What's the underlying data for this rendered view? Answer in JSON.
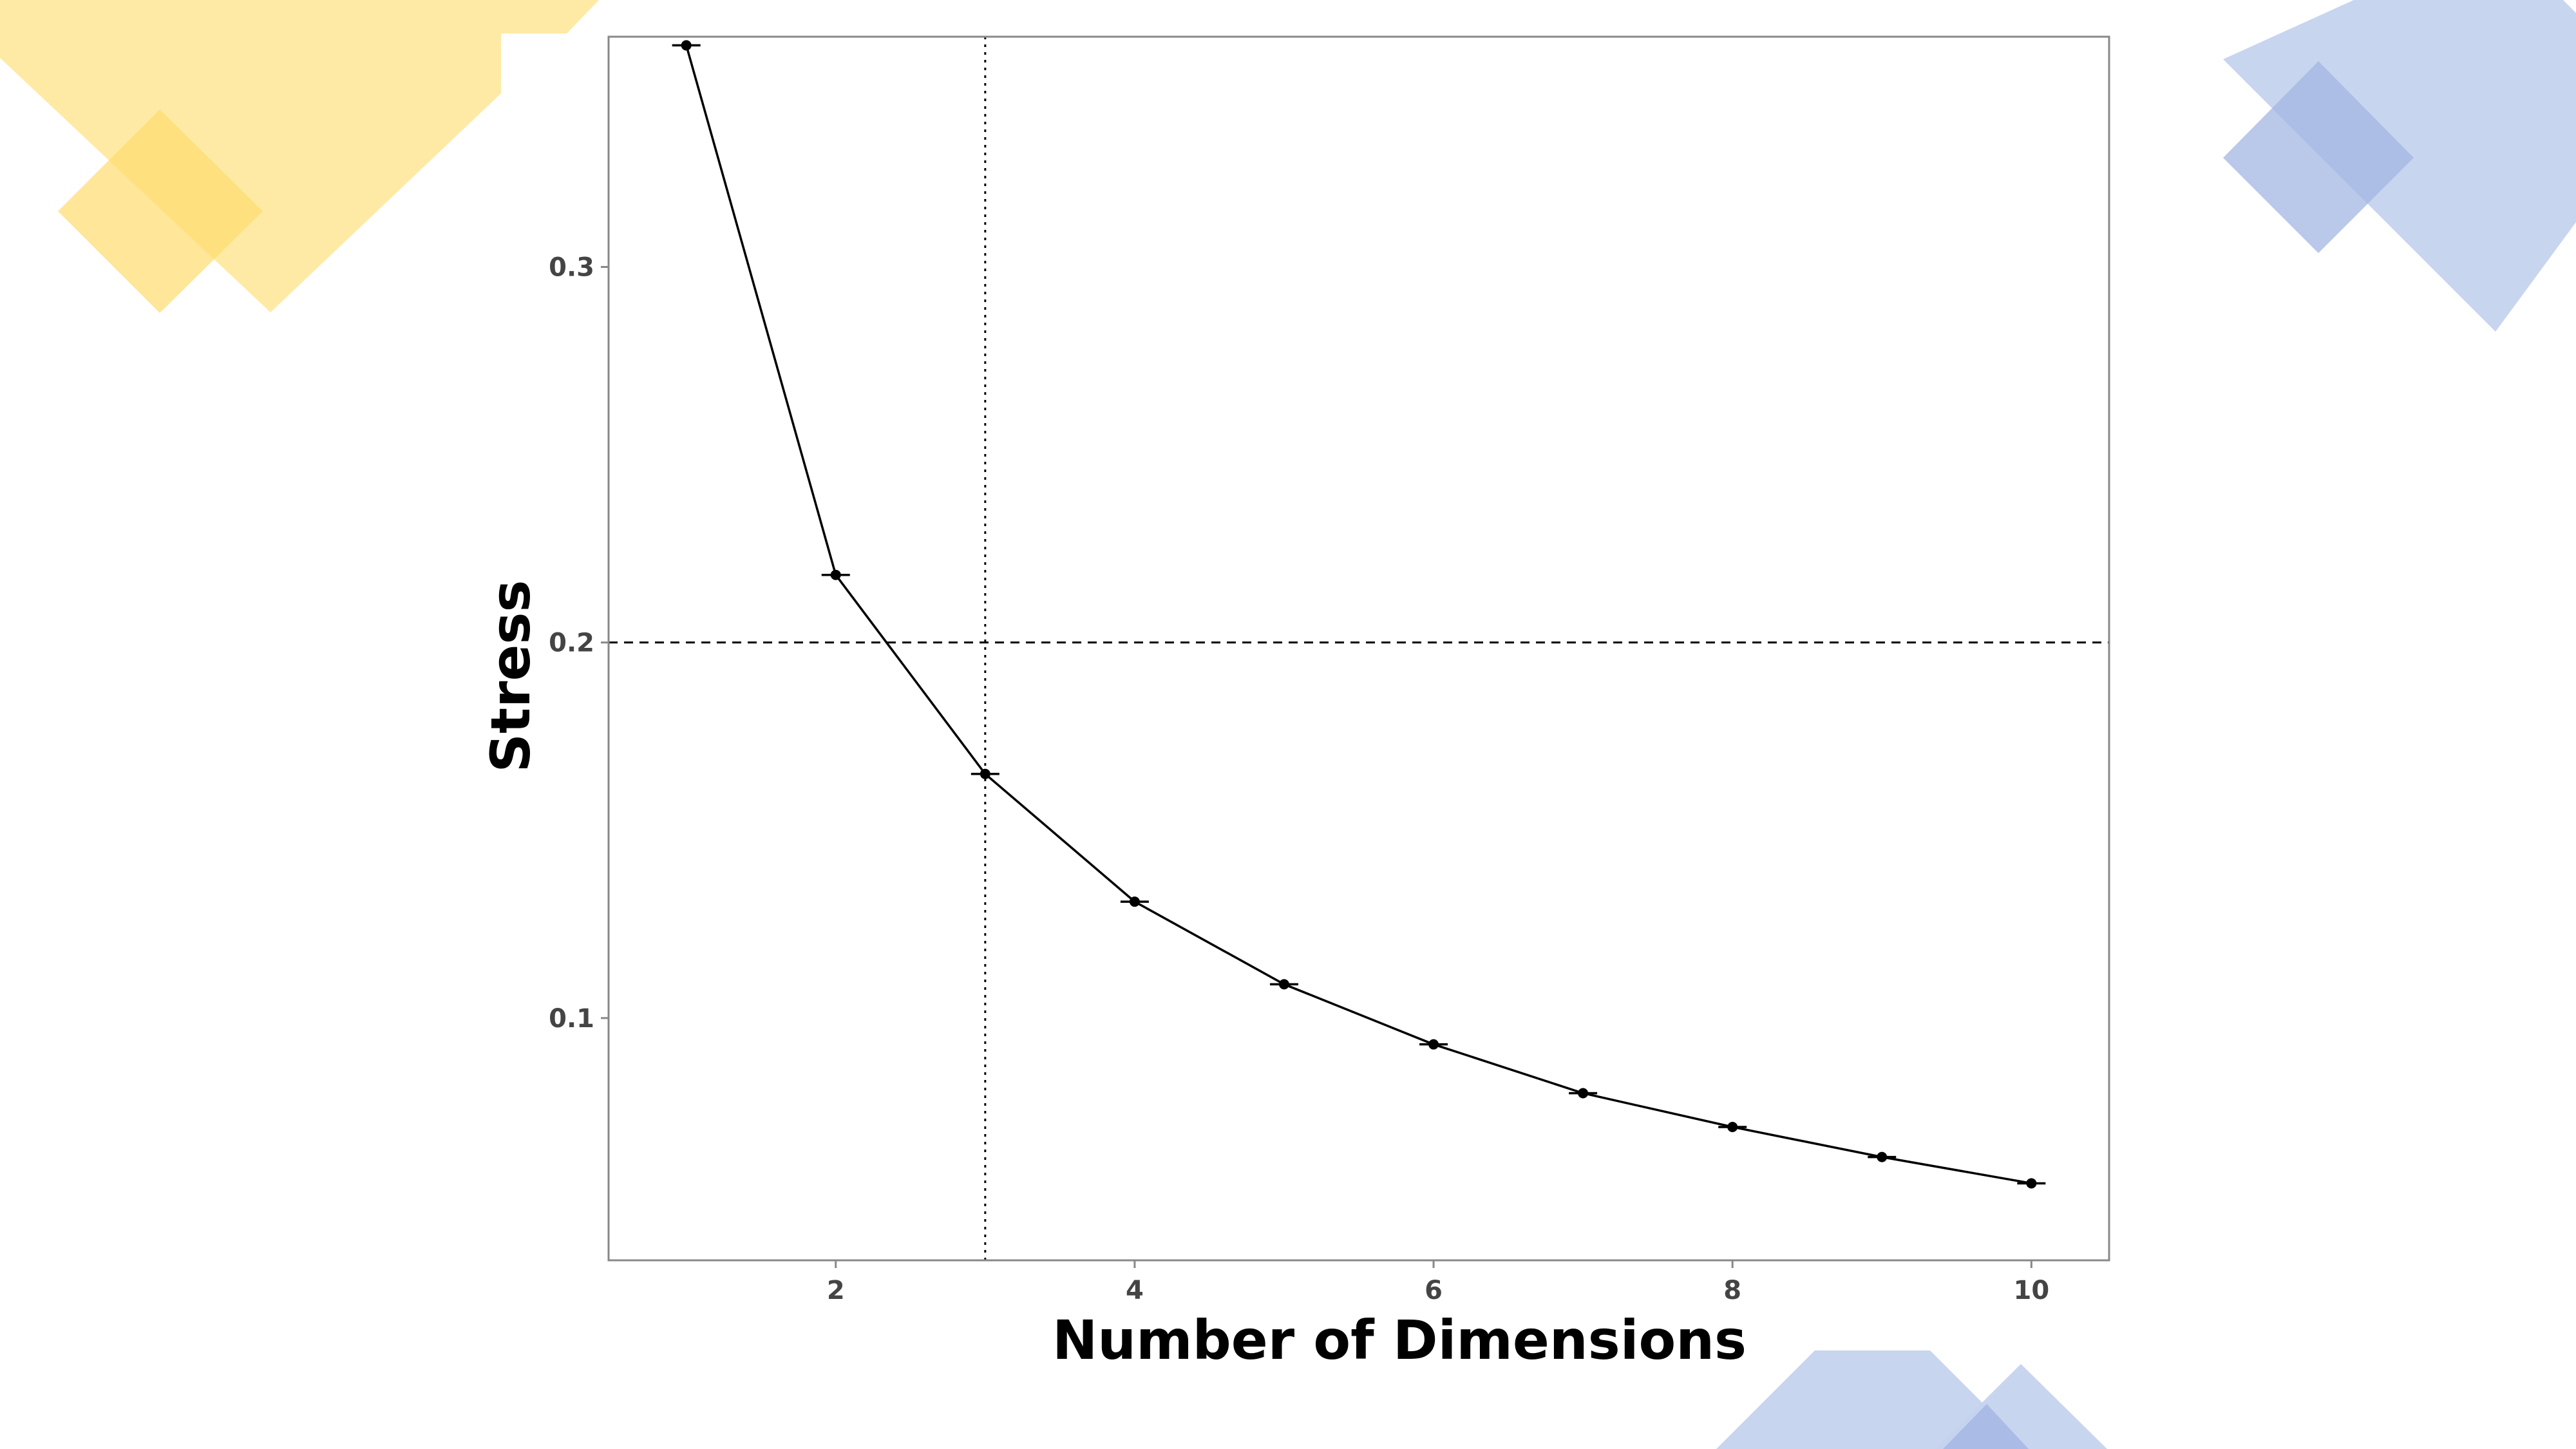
{
  "chart_data": {
    "type": "line",
    "title": "",
    "xlabel": "Number of Dimensions",
    "ylabel": "Stress",
    "x": [
      1,
      2,
      3,
      4,
      5,
      6,
      7,
      8,
      9,
      10
    ],
    "series": [
      {
        "values": [
          0.359,
          0.218,
          0.165,
          0.131,
          0.109,
          0.093,
          0.08,
          0.071,
          0.063,
          0.056
        ]
      }
    ],
    "x_ticks": [
      2,
      4,
      6,
      8,
      10
    ],
    "y_ticks": [
      0.1,
      0.2,
      0.3
    ],
    "xlim": [
      0.48,
      10.52
    ],
    "ylim": [
      0.0355,
      0.3613
    ],
    "reference_lines": {
      "horizontal_dashed_y": 0.2,
      "vertical_dotted_x": 3
    },
    "error_bars": true,
    "grid": false,
    "legend": "none",
    "colors": {
      "line": "#000000",
      "tick_text": "#444444",
      "frame": "#888888",
      "decor_yellow": "#FFE9A0",
      "decor_yellow_dark": "#FFDC6E",
      "decor_blue": "#C5D3EE",
      "decor_blue_dark": "#A3B6E2"
    }
  }
}
